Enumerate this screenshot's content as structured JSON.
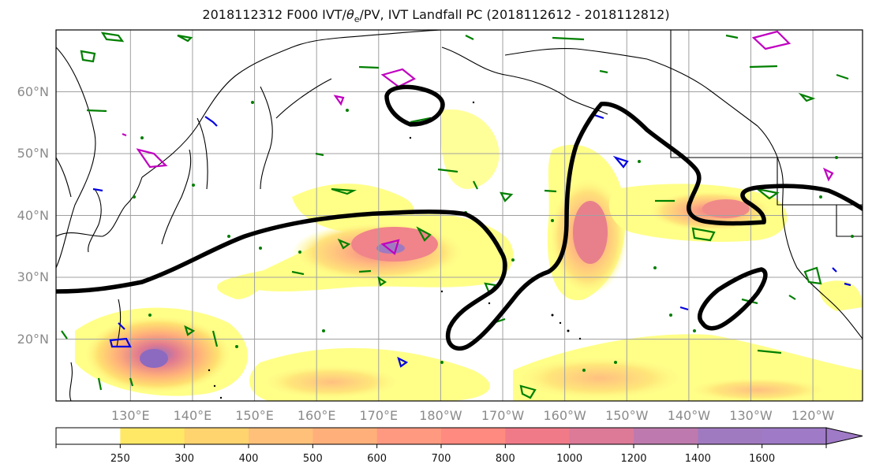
{
  "title_parts": {
    "prefix": "2018112312 F000 IVT/",
    "theta": "θ",
    "sub": "e",
    "suffix": "/PV, IVT Landfall PC (2018112612 - 2018112812)"
  },
  "map": {
    "lat_labels": [
      "60°N",
      "50°N",
      "40°N",
      "30°N",
      "20°N"
    ],
    "lon_labels": [
      "130°E",
      "140°E",
      "150°E",
      "160°E",
      "170°E",
      "180°W",
      "170°W",
      "160°W",
      "150°W",
      "140°W",
      "130°W",
      "120°W"
    ],
    "lat_values": [
      60,
      50,
      40,
      30,
      20
    ],
    "lon_values": [
      130,
      140,
      150,
      160,
      170,
      180,
      190,
      200,
      210,
      220,
      230,
      240
    ],
    "lat_range": [
      10,
      70
    ],
    "lon_range": [
      118,
      248
    ],
    "grid": true
  },
  "colorbar": {
    "tick_labels": [
      "250",
      "300",
      "400",
      "500",
      "600",
      "700",
      "800",
      "1000",
      "1200",
      "1400",
      "1600"
    ],
    "colors": [
      "#ffff66",
      "#ffe866",
      "#ffd36e",
      "#ffc07a",
      "#ffb07a",
      "#ff9a80",
      "#ff8a80",
      "#f07a88",
      "#dc7a98",
      "#be7aae",
      "#a07ac0",
      "#9f7ac6"
    ],
    "extend": "max"
  },
  "contour_colors": {
    "ivt_pc": "#000000",
    "pv": "#007f00",
    "theta_e": "#0000e0",
    "magenta": "#c000c0"
  }
}
